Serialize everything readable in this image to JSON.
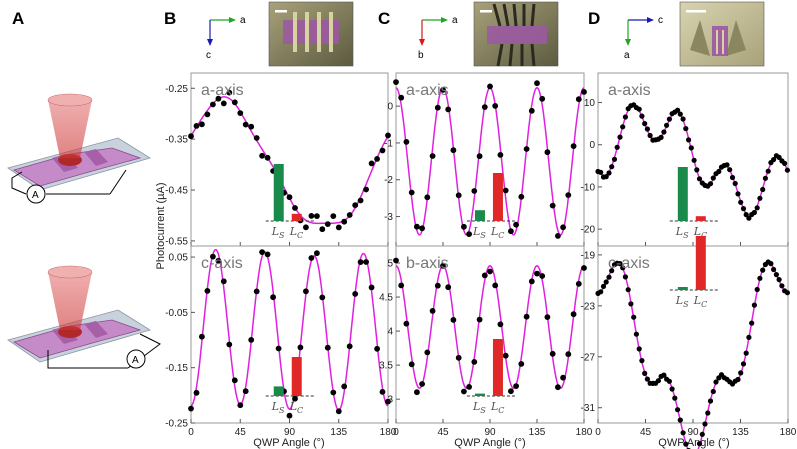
{
  "panel_letters": [
    "A",
    "B",
    "C",
    "D"
  ],
  "circuit_label": "A",
  "ylabel": "Photocurrent (µA)",
  "xlabel": "QWP Angle (°)",
  "x_ticks": [
    "0",
    "45",
    "90",
    "135",
    "180"
  ],
  "bar_labels": {
    "s": "L",
    "s_sub": "S",
    "c": "L",
    "c_sub": "C"
  },
  "colors": {
    "fit": "#e020e0",
    "points": "#000000",
    "bar_s": "#1a8a4a",
    "bar_c": "#e02828",
    "frame": "#999999"
  },
  "orientation": [
    {
      "h_label": "a",
      "v_label": "c",
      "h_color": "#1fa81f",
      "v_color": "#1a1ab8"
    },
    {
      "h_label": "a",
      "v_label": "b",
      "h_color": "#1fa81f",
      "v_color": "#d81818"
    },
    {
      "h_label": "c",
      "v_label": "a",
      "h_color": "#1a1ab8",
      "v_color": "#1fa81f"
    }
  ],
  "chart_data": [
    {
      "type": "scatter",
      "panel": "B",
      "title": "a-axis",
      "ylim": [
        -0.56,
        -0.22
      ],
      "yticks": [
        -0.25,
        -0.35,
        -0.45,
        -0.55
      ],
      "fit": {
        "c0": -0.405,
        "h": [
          [
            0.06,
            0.11
          ],
          [
            0.0,
            0.01
          ],
          [
            0.001,
            0.001
          ],
          [
            0.0,
            -0.006
          ]
        ]
      },
      "bars": {
        "s": 0.95,
        "c": 0.12
      }
    },
    {
      "type": "scatter",
      "panel": "B",
      "title": "c-axis",
      "ylim": [
        -0.25,
        0.07
      ],
      "yticks": [
        0.05,
        -0.05,
        -0.15,
        -0.25
      ],
      "fit": {
        "c0": -0.082,
        "h": [
          [
            0.003,
            0.005
          ],
          [
            0.0,
            0.0
          ],
          [
            0.0,
            0.0
          ],
          [
            -0.14,
            0.0
          ]
        ]
      },
      "bars": {
        "s": 0.16,
        "c": 0.65
      }
    },
    {
      "type": "scatter",
      "panel": "C",
      "title": "a-axis",
      "ylim": [
        -3.8,
        0.9
      ],
      "yticks": [
        0,
        -1,
        -2,
        -3
      ],
      "fit": {
        "c0": -1.5,
        "h": [
          [
            0.0,
            0.0
          ],
          [
            0.0,
            0.0
          ],
          [
            0.0,
            0.0
          ],
          [
            2.0,
            0.0
          ]
        ]
      },
      "bars": {
        "s": 0.18,
        "c": 0.8
      }
    },
    {
      "type": "scatter",
      "panel": "C",
      "title": "b-axis",
      "ylim": [
        2.65,
        5.25
      ],
      "yticks": [
        5,
        4.5,
        4,
        3.5,
        3
      ],
      "fit": {
        "c0": 4.06,
        "h": [
          [
            0.0,
            0.0
          ],
          [
            0.0,
            0.0
          ],
          [
            0.0,
            0.0
          ],
          [
            0.9,
            0.0
          ]
        ]
      },
      "bars": {
        "s": 0.04,
        "c": 0.95
      }
    },
    {
      "type": "scatter",
      "panel": "D",
      "title": "a-axis",
      "ylim": [
        -24,
        17
      ],
      "yticks": [
        10,
        0,
        -10,
        -20
      ],
      "fit": {
        "c0": -3.0,
        "h": [
          [
            -1.62,
            8.87
          ],
          [
            0.0,
            0.0
          ],
          [
            0.0,
            0.0
          ],
          [
            -1.38,
            -4.95
          ]
        ]
      },
      "bars": {
        "s": 0.9,
        "c": 0.08
      }
    },
    {
      "type": "scatter",
      "panel": "D",
      "title": "c-axis",
      "ylim": [
        -32.2,
        -18.3
      ],
      "yticks": [
        -19,
        -23,
        -27,
        -31
      ],
      "fit": {
        "c0": -26.39,
        "h": [
          [
            6.41,
            0.0
          ],
          [
            0.0,
            0.0
          ],
          [
            0.0,
            0.0
          ],
          [
            -2.0,
            0.0
          ]
        ]
      },
      "bars": {
        "s": 0.05,
        "c": 0.9
      }
    }
  ]
}
